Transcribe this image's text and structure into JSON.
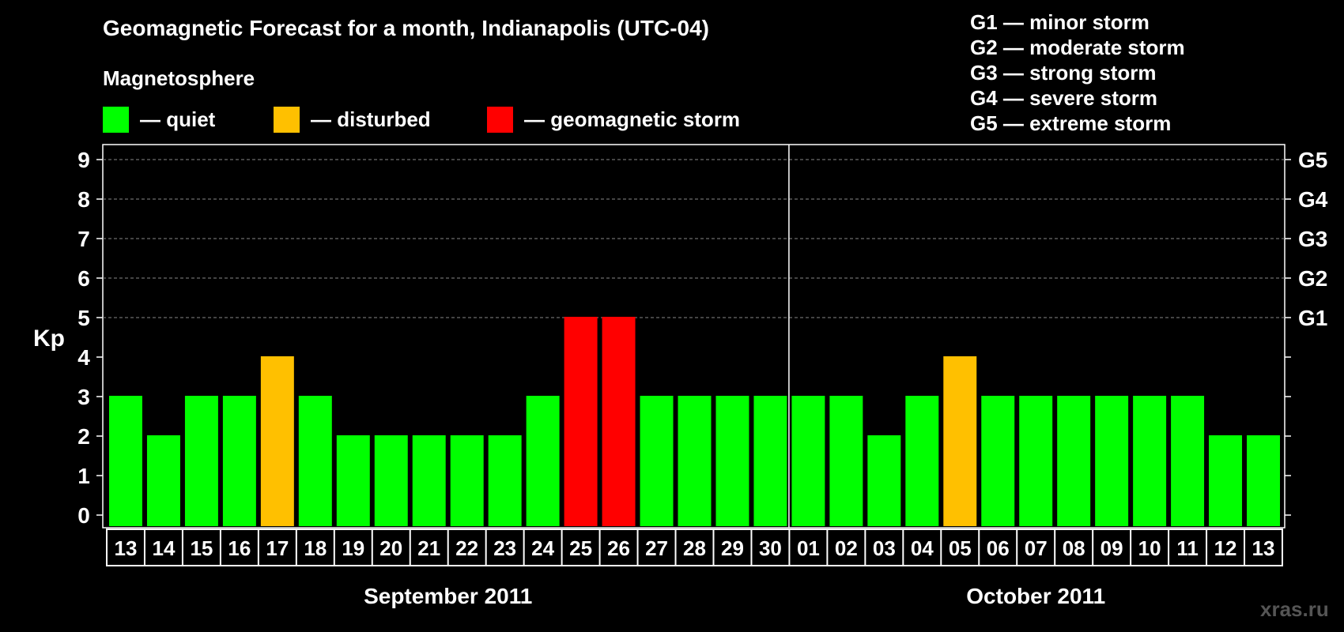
{
  "header": {
    "title": "Geomagnetic Forecast for a month, Indianapolis (UTC-04)",
    "subtitle": "Magnetosphere"
  },
  "legend": [
    {
      "label": "— quiet",
      "color": "#00ff00"
    },
    {
      "label": "— disturbed",
      "color": "#ffc000"
    },
    {
      "label": "— geomagnetic storm",
      "color": "#ff0000"
    }
  ],
  "g_scale": [
    "G1 — minor storm",
    "G2 — moderate storm",
    "G3 — strong storm",
    "G4 — severe storm",
    "G5 — extreme storm"
  ],
  "watermark": "xras.ru",
  "chart_data": {
    "type": "bar",
    "ylabel": "Kp",
    "ylim": [
      0,
      9
    ],
    "y_ticks": [
      "0",
      "1",
      "2",
      "3",
      "4",
      "5",
      "6",
      "7",
      "8",
      "9"
    ],
    "right_axis_labels": [
      {
        "kp": 5,
        "label": "G1"
      },
      {
        "kp": 6,
        "label": "G2"
      },
      {
        "kp": 7,
        "label": "G3"
      },
      {
        "kp": 8,
        "label": "G4"
      },
      {
        "kp": 9,
        "label": "G5"
      }
    ],
    "categories": [
      "13",
      "14",
      "15",
      "16",
      "17",
      "18",
      "19",
      "20",
      "21",
      "22",
      "23",
      "24",
      "25",
      "26",
      "27",
      "28",
      "29",
      "30",
      "01",
      "02",
      "03",
      "04",
      "05",
      "06",
      "07",
      "08",
      "09",
      "10",
      "11",
      "12",
      "13"
    ],
    "values": [
      3,
      2,
      3,
      3,
      4,
      3,
      2,
      2,
      2,
      2,
      2,
      3,
      5,
      5,
      3,
      3,
      3,
      3,
      3,
      3,
      2,
      3,
      4,
      3,
      3,
      3,
      3,
      3,
      3,
      2,
      2
    ],
    "months": [
      {
        "label": "September 2011",
        "first_index": 0,
        "count": 18
      },
      {
        "label": "October 2011",
        "first_index": 18,
        "count": 13
      }
    ],
    "grid": "dashed at Kp 5-9",
    "colors": {
      "quiet": "#00ff00",
      "disturbed": "#ffc000",
      "storm": "#ff0000"
    }
  }
}
